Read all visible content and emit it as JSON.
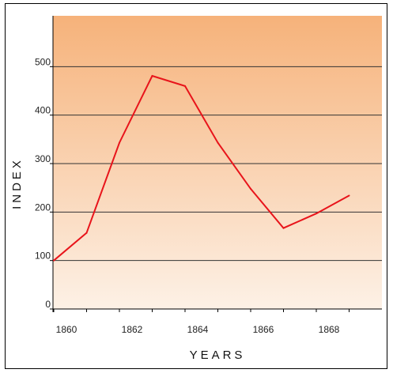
{
  "chart_data": {
    "type": "line",
    "title": "",
    "xlabel": "YEARS",
    "ylabel": "INDEX",
    "x_ticks": [
      "1860",
      "1862",
      "1864",
      "1866",
      "1868"
    ],
    "y_ticks": [
      "0",
      "100",
      "200",
      "300",
      "400",
      "500"
    ],
    "xlim": [
      1859,
      1870
    ],
    "ylim": [
      0,
      600
    ],
    "grid": "horizontal",
    "legend": "none",
    "series": [
      {
        "color": "#e8141b",
        "points": [
          {
            "x": 1860,
            "y": 100
          },
          {
            "x": 1861,
            "y": 157
          },
          {
            "x": 1862,
            "y": 343
          },
          {
            "x": 1863,
            "y": 481
          },
          {
            "x": 1864,
            "y": 460
          },
          {
            "x": 1865,
            "y": 343
          },
          {
            "x": 1866,
            "y": 248
          },
          {
            "x": 1867,
            "y": 167
          },
          {
            "x": 1868,
            "y": 197
          },
          {
            "x": 1869,
            "y": 234
          }
        ]
      }
    ],
    "plot_background": [
      "#f6b27a",
      "#fdf1e6"
    ]
  }
}
